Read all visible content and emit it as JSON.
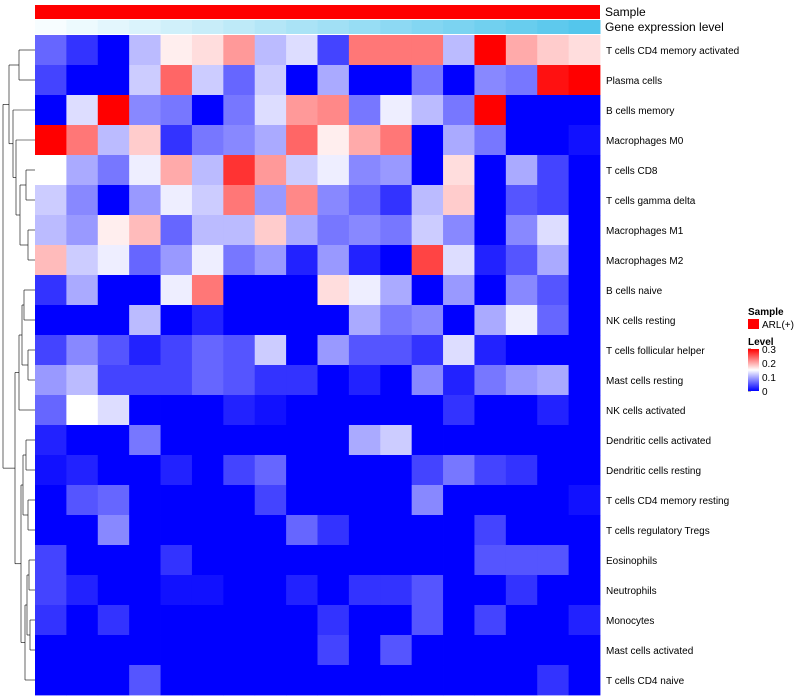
{
  "chart_data": {
    "type": "heatmap",
    "annotation_tracks": [
      {
        "label": "Sample",
        "kind": "categorical",
        "color": "#ff0000"
      },
      {
        "label": "Gene expression level",
        "kind": "gradient",
        "color_low": "#f7fdff",
        "color_high": "#54c6ec"
      }
    ],
    "rows": [
      "T cells CD4 memory activated",
      "Plasma cells",
      "B cells memory",
      "Macrophages M0",
      "T cells CD8",
      "T cells gamma delta",
      "Macrophages M1",
      "Macrophages M2",
      "B cells naive",
      "NK cells resting",
      "T cells follicular helper",
      "Mast cells resting",
      "NK cells activated",
      "Dendritic cells activated",
      "Dendritic cells resting",
      "T cells CD4 memory resting",
      "T cells regulatory  Tregs",
      "Eosinophils",
      "Neutrophils",
      "Monocytes",
      "Mast cells activated",
      "T cells CD4 naive"
    ],
    "n_columns": 18,
    "values": [
      [
        0.06,
        0.03,
        0.0,
        0.11,
        0.16,
        0.17,
        0.21,
        0.11,
        0.13,
        0.04,
        0.23,
        0.23,
        0.23,
        0.11,
        0.3,
        0.2,
        0.18,
        0.17
      ],
      [
        0.04,
        0.0,
        0.0,
        0.12,
        0.24,
        0.12,
        0.06,
        0.12,
        0.0,
        0.1,
        0.0,
        0.0,
        0.07,
        0.0,
        0.08,
        0.07,
        0.29,
        0.3
      ],
      [
        0.0,
        0.13,
        0.3,
        0.08,
        0.07,
        0.0,
        0.07,
        0.13,
        0.21,
        0.22,
        0.07,
        0.14,
        0.11,
        0.07,
        0.3,
        0.0,
        0.0,
        0.0
      ],
      [
        0.3,
        0.23,
        0.11,
        0.18,
        0.03,
        0.07,
        0.08,
        0.1,
        0.24,
        0.16,
        0.2,
        0.23,
        0.0,
        0.1,
        0.07,
        0.0,
        0.0,
        0.01
      ],
      [
        0.15,
        0.1,
        0.07,
        0.14,
        0.2,
        0.11,
        0.27,
        0.21,
        0.12,
        0.14,
        0.08,
        0.09,
        0.0,
        0.17,
        0.0,
        0.1,
        0.04,
        0.0
      ],
      [
        0.12,
        0.08,
        0.0,
        0.09,
        0.14,
        0.12,
        0.23,
        0.09,
        0.22,
        0.08,
        0.06,
        0.03,
        0.11,
        0.18,
        0.0,
        0.05,
        0.04,
        0.0
      ],
      [
        0.11,
        0.09,
        0.16,
        0.19,
        0.06,
        0.11,
        0.11,
        0.18,
        0.1,
        0.07,
        0.08,
        0.07,
        0.12,
        0.08,
        0.0,
        0.08,
        0.13,
        0.0
      ],
      [
        0.19,
        0.12,
        0.14,
        0.06,
        0.09,
        0.14,
        0.07,
        0.09,
        0.02,
        0.09,
        0.02,
        0.0,
        0.26,
        0.13,
        0.02,
        0.05,
        0.1,
        0.0
      ],
      [
        0.03,
        0.1,
        0.0,
        0.0,
        0.14,
        0.23,
        0.0,
        0.0,
        0.0,
        0.17,
        0.14,
        0.1,
        0.0,
        0.09,
        0.0,
        0.08,
        0.05,
        0.0
      ],
      [
        0.0,
        0.0,
        0.0,
        0.11,
        0.0,
        0.02,
        0.0,
        0.0,
        0.0,
        0.0,
        0.1,
        0.07,
        0.08,
        0.0,
        0.1,
        0.14,
        0.06,
        0.0
      ],
      [
        0.04,
        0.08,
        0.05,
        0.02,
        0.04,
        0.06,
        0.05,
        0.12,
        0.0,
        0.09,
        0.05,
        0.05,
        0.03,
        0.13,
        0.02,
        0.0,
        0.0,
        0.0
      ],
      [
        0.09,
        0.11,
        0.04,
        0.04,
        0.04,
        0.06,
        0.05,
        0.03,
        0.03,
        0.0,
        0.02,
        0.0,
        0.08,
        0.02,
        0.07,
        0.09,
        0.1,
        0.0
      ],
      [
        0.06,
        0.15,
        0.13,
        0.0,
        0.0,
        0.0,
        0.02,
        0.01,
        0.0,
        0.0,
        0.0,
        0.0,
        0.0,
        0.03,
        0.0,
        0.0,
        0.02,
        0.0
      ],
      [
        0.02,
        0.0,
        0.0,
        0.07,
        0.0,
        0.0,
        0.0,
        0.0,
        0.0,
        0.0,
        0.1,
        0.12,
        0.0,
        0.0,
        0.0,
        0.0,
        0.0,
        0.0
      ],
      [
        0.01,
        0.02,
        0.0,
        0.0,
        0.02,
        0.0,
        0.04,
        0.06,
        0.0,
        0.0,
        0.0,
        0.0,
        0.04,
        0.07,
        0.04,
        0.03,
        0.0,
        0.0
      ],
      [
        0.0,
        0.05,
        0.06,
        0.0,
        0.0,
        0.0,
        0.0,
        0.04,
        0.0,
        0.0,
        0.0,
        0.0,
        0.08,
        0.0,
        0.0,
        0.0,
        0.0,
        0.01
      ],
      [
        0.0,
        0.0,
        0.08,
        0.0,
        0.0,
        0.0,
        0.0,
        0.0,
        0.06,
        0.03,
        0.0,
        0.0,
        0.0,
        0.0,
        0.04,
        0.0,
        0.0,
        0.0
      ],
      [
        0.04,
        0.0,
        0.0,
        0.0,
        0.03,
        0.0,
        0.0,
        0.0,
        0.0,
        0.0,
        0.0,
        0.0,
        0.0,
        0.0,
        0.05,
        0.05,
        0.05,
        0.0
      ],
      [
        0.04,
        0.02,
        0.0,
        0.0,
        0.01,
        0.01,
        0.0,
        0.0,
        0.02,
        0.0,
        0.03,
        0.03,
        0.05,
        0.0,
        0.0,
        0.03,
        0.0,
        0.0
      ],
      [
        0.03,
        0.0,
        0.03,
        0.0,
        0.0,
        0.0,
        0.0,
        0.0,
        0.0,
        0.03,
        0.0,
        0.0,
        0.05,
        0.0,
        0.04,
        0.0,
        0.0,
        0.02
      ],
      [
        0.0,
        0.0,
        0.0,
        0.0,
        0.0,
        0.0,
        0.0,
        0.0,
        0.0,
        0.04,
        0.0,
        0.05,
        0.0,
        0.0,
        0.0,
        0.0,
        0.0,
        0.0
      ],
      [
        0.0,
        0.0,
        0.0,
        0.05,
        0.0,
        0.0,
        0.0,
        0.0,
        0.0,
        0.0,
        0.0,
        0.0,
        0.0,
        0.0,
        0.0,
        0.0,
        0.03,
        0.0
      ]
    ],
    "expression_level": [
      0.0,
      0.06,
      0.12,
      0.18,
      0.24,
      0.29,
      0.35,
      0.41,
      0.47,
      0.53,
      0.59,
      0.65,
      0.71,
      0.76,
      0.82,
      0.88,
      0.94,
      1.0
    ],
    "legend": {
      "sample_title": "Sample",
      "sample_entry": "ARL(+)",
      "sample_color": "#ff0000",
      "level_title": "Level",
      "ticks": [
        "0.3",
        "0.2",
        "0.1",
        "0"
      ],
      "tick_values": [
        0.3,
        0.2,
        0.1,
        0
      ],
      "range": [
        0,
        0.3
      ],
      "colors": {
        "low": "#0000ff",
        "mid": "#ffffff",
        "high": "#ff0000"
      },
      "placement": "right"
    },
    "dendrogram": {
      "side": "left"
    }
  }
}
